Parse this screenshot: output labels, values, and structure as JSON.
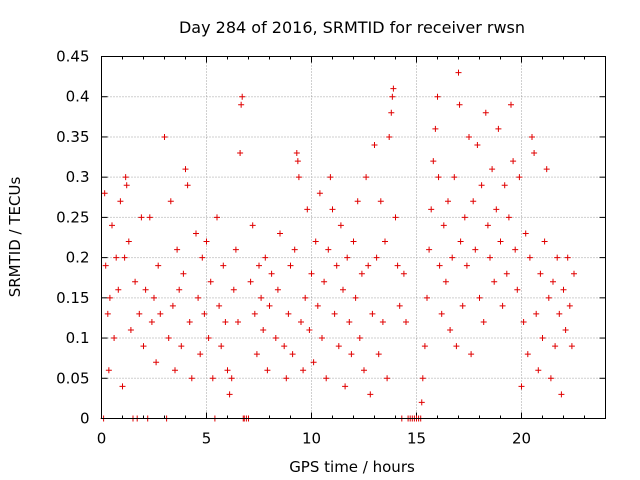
{
  "chart_data": {
    "type": "scatter",
    "title": "Day 284 of 2016, SRMTID for receiver rwsn",
    "xlabel": "GPS time / hours",
    "ylabel": "SRMTID / TECUs",
    "xlim": [
      0,
      24
    ],
    "ylim": [
      0,
      0.45
    ],
    "xticks": [
      0,
      5,
      10,
      15,
      20
    ],
    "yticks": [
      0,
      0.05,
      0.1,
      0.15,
      0.2,
      0.25,
      0.3,
      0.35,
      0.4,
      0.45
    ],
    "xtick_labels": [
      "0",
      "5",
      "10",
      "15",
      "20"
    ],
    "ytick_labels": [
      "0",
      "0.05",
      "0.1",
      "0.15",
      "0.2",
      "0.25",
      "0.3",
      "0.35",
      "0.4",
      "0.45"
    ],
    "grid": true,
    "marker": "+",
    "series": [
      {
        "name": "SRMTID",
        "color": "#e00000",
        "points": [
          [
            0.1,
            0.0
          ],
          [
            0.15,
            0.28
          ],
          [
            0.2,
            0.19
          ],
          [
            0.3,
            0.13
          ],
          [
            0.35,
            0.06
          ],
          [
            0.4,
            0.15
          ],
          [
            0.5,
            0.24
          ],
          [
            0.6,
            0.1
          ],
          [
            0.7,
            0.2
          ],
          [
            0.8,
            0.16
          ],
          [
            0.9,
            0.27
          ],
          [
            1.0,
            0.04
          ],
          [
            1.1,
            0.2
          ],
          [
            1.15,
            0.3
          ],
          [
            1.2,
            0.29
          ],
          [
            1.3,
            0.22
          ],
          [
            1.4,
            0.11
          ],
          [
            1.5,
            0.0
          ],
          [
            1.6,
            0.17
          ],
          [
            1.7,
            0.0
          ],
          [
            1.8,
            0.13
          ],
          [
            1.9,
            0.25
          ],
          [
            2.0,
            0.09
          ],
          [
            2.1,
            0.16
          ],
          [
            2.2,
            0.0
          ],
          [
            2.3,
            0.25
          ],
          [
            2.4,
            0.12
          ],
          [
            2.5,
            0.15
          ],
          [
            2.6,
            0.07
          ],
          [
            2.7,
            0.19
          ],
          [
            2.8,
            0.13
          ],
          [
            3.0,
            0.35
          ],
          [
            3.1,
            0.0
          ],
          [
            3.2,
            0.1
          ],
          [
            3.3,
            0.27
          ],
          [
            3.4,
            0.14
          ],
          [
            3.5,
            0.06
          ],
          [
            3.6,
            0.21
          ],
          [
            3.7,
            0.16
          ],
          [
            3.8,
            0.09
          ],
          [
            3.9,
            0.18
          ],
          [
            4.0,
            0.31
          ],
          [
            4.1,
            0.29
          ],
          [
            4.2,
            0.12
          ],
          [
            4.3,
            0.05
          ],
          [
            4.5,
            0.23
          ],
          [
            4.6,
            0.15
          ],
          [
            4.7,
            0.08
          ],
          [
            4.8,
            0.2
          ],
          [
            4.9,
            0.13
          ],
          [
            5.0,
            0.22
          ],
          [
            5.1,
            0.1
          ],
          [
            5.2,
            0.17
          ],
          [
            5.3,
            0.05
          ],
          [
            5.4,
            0.0
          ],
          [
            5.5,
            0.25
          ],
          [
            5.6,
            0.14
          ],
          [
            5.7,
            0.09
          ],
          [
            5.8,
            0.19
          ],
          [
            5.9,
            0.12
          ],
          [
            6.0,
            0.06
          ],
          [
            6.1,
            0.03
          ],
          [
            6.2,
            0.05
          ],
          [
            6.3,
            0.16
          ],
          [
            6.4,
            0.21
          ],
          [
            6.5,
            0.12
          ],
          [
            6.6,
            0.33
          ],
          [
            6.65,
            0.39
          ],
          [
            6.7,
            0.4
          ],
          [
            6.75,
            0.0
          ],
          [
            6.8,
            0.0
          ],
          [
            6.9,
            0.0
          ],
          [
            7.0,
            0.0
          ],
          [
            7.1,
            0.17
          ],
          [
            7.2,
            0.24
          ],
          [
            7.3,
            0.13
          ],
          [
            7.4,
            0.08
          ],
          [
            7.5,
            0.19
          ],
          [
            7.6,
            0.15
          ],
          [
            7.7,
            0.11
          ],
          [
            7.8,
            0.2
          ],
          [
            7.9,
            0.06
          ],
          [
            8.0,
            0.14
          ],
          [
            8.1,
            0.18
          ],
          [
            8.3,
            0.1
          ],
          [
            8.4,
            0.16
          ],
          [
            8.5,
            0.23
          ],
          [
            8.7,
            0.09
          ],
          [
            8.8,
            0.05
          ],
          [
            8.9,
            0.13
          ],
          [
            9.0,
            0.19
          ],
          [
            9.1,
            0.08
          ],
          [
            9.2,
            0.21
          ],
          [
            9.3,
            0.33
          ],
          [
            9.35,
            0.32
          ],
          [
            9.4,
            0.3
          ],
          [
            9.5,
            0.12
          ],
          [
            9.6,
            0.06
          ],
          [
            9.7,
            0.15
          ],
          [
            9.8,
            0.26
          ],
          [
            9.9,
            0.11
          ],
          [
            10.0,
            0.18
          ],
          [
            10.1,
            0.07
          ],
          [
            10.2,
            0.22
          ],
          [
            10.3,
            0.14
          ],
          [
            10.4,
            0.28
          ],
          [
            10.5,
            0.1
          ],
          [
            10.6,
            0.17
          ],
          [
            10.7,
            0.05
          ],
          [
            10.8,
            0.21
          ],
          [
            10.9,
            0.3
          ],
          [
            11.0,
            0.26
          ],
          [
            11.1,
            0.13
          ],
          [
            11.2,
            0.19
          ],
          [
            11.3,
            0.09
          ],
          [
            11.4,
            0.24
          ],
          [
            11.5,
            0.16
          ],
          [
            11.6,
            0.04
          ],
          [
            11.7,
            0.2
          ],
          [
            11.8,
            0.12
          ],
          [
            11.9,
            0.08
          ],
          [
            12.0,
            0.22
          ],
          [
            12.1,
            0.15
          ],
          [
            12.2,
            0.27
          ],
          [
            12.3,
            0.1
          ],
          [
            12.4,
            0.18
          ],
          [
            12.5,
            0.06
          ],
          [
            12.6,
            0.3
          ],
          [
            12.7,
            0.19
          ],
          [
            12.8,
            0.03
          ],
          [
            12.9,
            0.13
          ],
          [
            13.0,
            0.34
          ],
          [
            13.1,
            0.2
          ],
          [
            13.2,
            0.08
          ],
          [
            13.3,
            0.27
          ],
          [
            13.4,
            0.12
          ],
          [
            13.5,
            0.22
          ],
          [
            13.6,
            0.05
          ],
          [
            13.7,
            0.35
          ],
          [
            13.8,
            0.38
          ],
          [
            13.85,
            0.4
          ],
          [
            13.9,
            0.41
          ],
          [
            14.0,
            0.25
          ],
          [
            14.1,
            0.19
          ],
          [
            14.2,
            0.14
          ],
          [
            14.3,
            0.0
          ],
          [
            14.4,
            0.18
          ],
          [
            14.5,
            0.12
          ],
          [
            14.6,
            0.0
          ],
          [
            14.7,
            0.0
          ],
          [
            14.8,
            0.0
          ],
          [
            14.9,
            0.0
          ],
          [
            15.0,
            0.0
          ],
          [
            15.1,
            0.0
          ],
          [
            15.2,
            0.0
          ],
          [
            15.25,
            0.02
          ],
          [
            15.3,
            0.05
          ],
          [
            15.4,
            0.09
          ],
          [
            15.5,
            0.15
          ],
          [
            15.6,
            0.21
          ],
          [
            15.7,
            0.26
          ],
          [
            15.8,
            0.32
          ],
          [
            15.9,
            0.36
          ],
          [
            16.0,
            0.4
          ],
          [
            16.05,
            0.3
          ],
          [
            16.1,
            0.19
          ],
          [
            16.2,
            0.13
          ],
          [
            16.3,
            0.24
          ],
          [
            16.4,
            0.17
          ],
          [
            16.5,
            0.27
          ],
          [
            16.6,
            0.11
          ],
          [
            16.7,
            0.2
          ],
          [
            16.8,
            0.3
          ],
          [
            16.9,
            0.09
          ],
          [
            17.0,
            0.43
          ],
          [
            17.05,
            0.39
          ],
          [
            17.1,
            0.22
          ],
          [
            17.2,
            0.14
          ],
          [
            17.3,
            0.25
          ],
          [
            17.4,
            0.19
          ],
          [
            17.5,
            0.35
          ],
          [
            17.6,
            0.08
          ],
          [
            17.7,
            0.27
          ],
          [
            17.8,
            0.21
          ],
          [
            17.9,
            0.34
          ],
          [
            18.0,
            0.15
          ],
          [
            18.1,
            0.29
          ],
          [
            18.2,
            0.12
          ],
          [
            18.3,
            0.38
          ],
          [
            18.4,
            0.24
          ],
          [
            18.5,
            0.2
          ],
          [
            18.6,
            0.31
          ],
          [
            18.7,
            0.17
          ],
          [
            18.8,
            0.26
          ],
          [
            18.9,
            0.36
          ],
          [
            19.0,
            0.22
          ],
          [
            19.1,
            0.14
          ],
          [
            19.2,
            0.29
          ],
          [
            19.3,
            0.18
          ],
          [
            19.4,
            0.25
          ],
          [
            19.5,
            0.39
          ],
          [
            19.6,
            0.32
          ],
          [
            19.7,
            0.21
          ],
          [
            19.8,
            0.16
          ],
          [
            19.9,
            0.3
          ],
          [
            20.0,
            0.04
          ],
          [
            20.1,
            0.12
          ],
          [
            20.2,
            0.23
          ],
          [
            20.3,
            0.08
          ],
          [
            20.4,
            0.2
          ],
          [
            20.5,
            0.35
          ],
          [
            20.6,
            0.33
          ],
          [
            20.7,
            0.13
          ],
          [
            20.8,
            0.06
          ],
          [
            20.9,
            0.18
          ],
          [
            21.0,
            0.1
          ],
          [
            21.1,
            0.22
          ],
          [
            21.2,
            0.31
          ],
          [
            21.3,
            0.15
          ],
          [
            21.4,
            0.05
          ],
          [
            21.5,
            0.17
          ],
          [
            21.6,
            0.09
          ],
          [
            21.7,
            0.2
          ],
          [
            21.8,
            0.13
          ],
          [
            21.9,
            0.03
          ],
          [
            22.0,
            0.16
          ],
          [
            22.1,
            0.11
          ],
          [
            22.2,
            0.2
          ],
          [
            22.3,
            0.14
          ],
          [
            22.4,
            0.09
          ],
          [
            22.5,
            0.18
          ]
        ]
      }
    ]
  }
}
